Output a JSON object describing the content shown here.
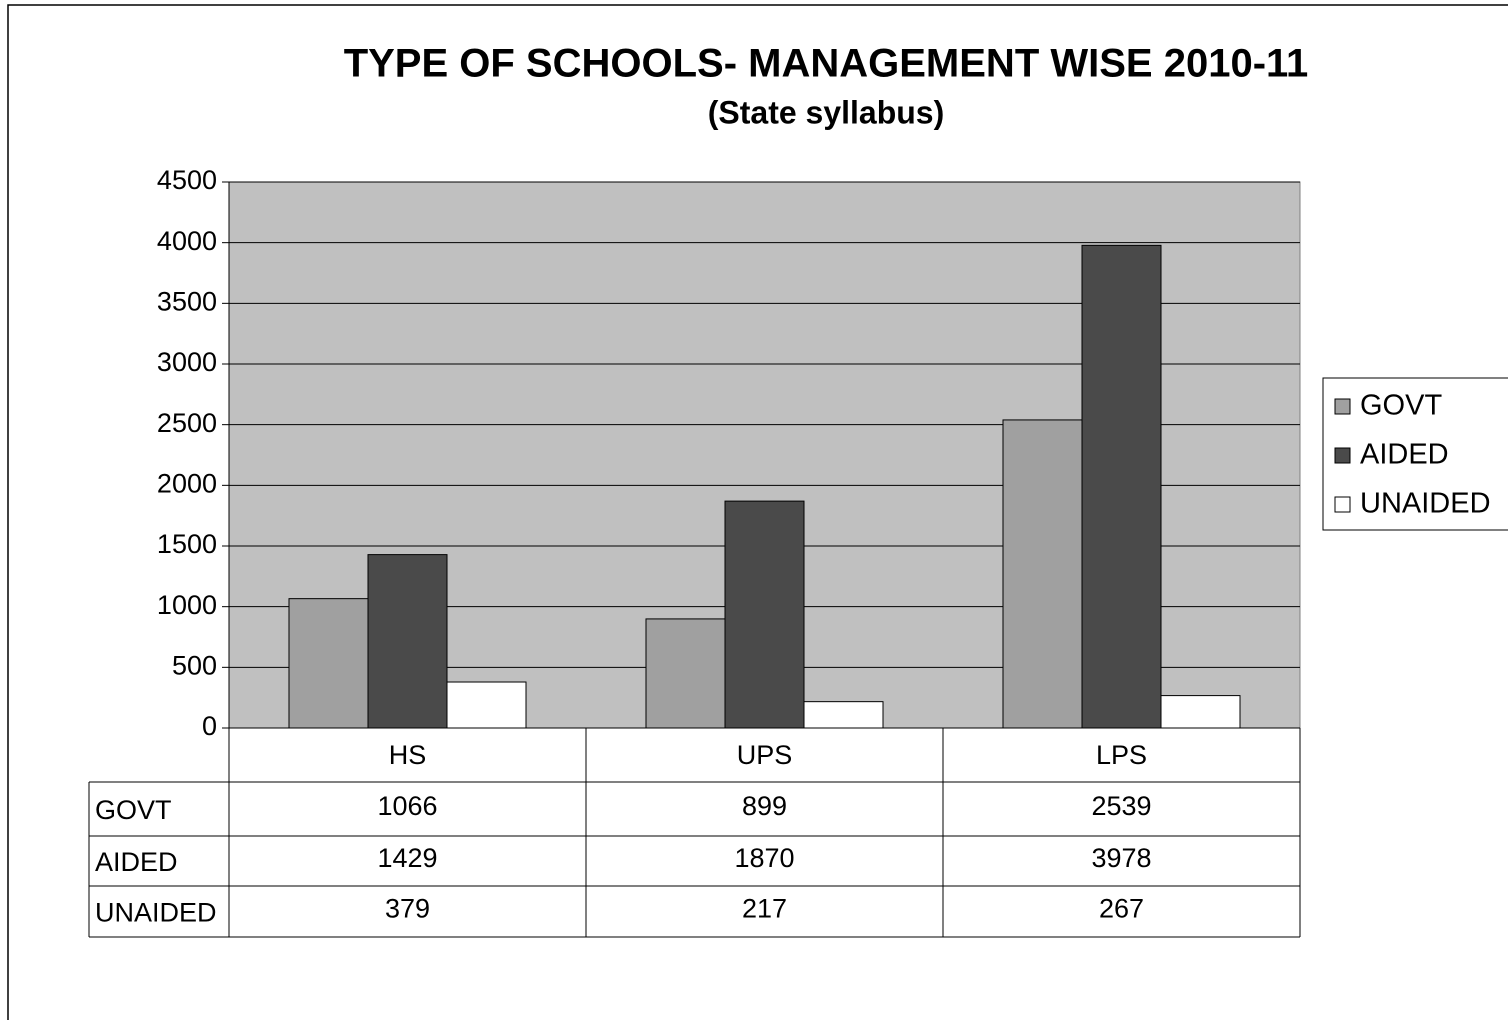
{
  "chart_data": {
    "type": "bar",
    "title": "TYPE OF SCHOOLS- MANAGEMENT WISE 2010-11",
    "subtitle": "(State syllabus)",
    "categories": [
      "HS",
      "UPS",
      "LPS"
    ],
    "series": [
      {
        "name": "GOVT",
        "color": "#a0a0a0",
        "values": [
          1066,
          899,
          2539
        ]
      },
      {
        "name": "AIDED",
        "color": "#4a4a4a",
        "values": [
          1429,
          1870,
          3978
        ]
      },
      {
        "name": "UNAIDED",
        "color": "#ffffff",
        "values": [
          379,
          217,
          267
        ]
      }
    ],
    "ylim": [
      0,
      4500
    ],
    "yticks": [
      0,
      500,
      1000,
      1500,
      2000,
      2500,
      3000,
      3500,
      4000,
      4500
    ],
    "grid": true,
    "legend": "right"
  }
}
